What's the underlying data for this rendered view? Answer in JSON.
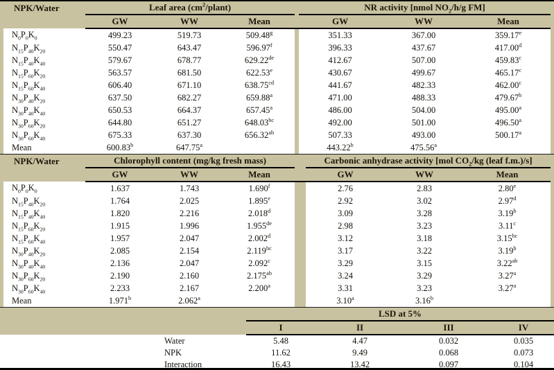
{
  "colors": {
    "header_bg": "#c9c2a1",
    "rule": "#000000",
    "text": "#14100a"
  },
  "row_header_label": "NPK/Water",
  "subheaders": [
    "GW",
    "WW",
    "Mean"
  ],
  "treatments": [
    "N_{0}P_{0}K_{0}",
    "N_{15}P_{40}K_{20}",
    "N_{15}P_{40}K_{40}",
    "N_{15}P_{60}K_{20}",
    "N_{15}P_{60}K_{40}",
    "N_{30}P_{40}K_{20}",
    "N_{30}P_{40}K_{40}",
    "N_{30}P_{60}K_{20}",
    "N_{30}P_{60}K_{40}",
    "Mean"
  ],
  "sections": [
    {
      "groups": [
        {
          "title": "Leaf area (cm^{2}/plant)",
          "rows": [
            [
              "499.23",
              "519.73",
              "509.48^{g}"
            ],
            [
              "550.47",
              "643.47",
              "596.97^{f}"
            ],
            [
              "579.67",
              "678.77",
              "629.22^{de}"
            ],
            [
              "563.57",
              "681.50",
              "622.53^{e}"
            ],
            [
              "606.40",
              "671.10",
              "638.75^{cd}"
            ],
            [
              "637.50",
              "682.27",
              "659.88^{a}"
            ],
            [
              "650.53",
              "664.37",
              "657.45^{a}"
            ],
            [
              "644.80",
              "651.27",
              "648.03^{bc}"
            ],
            [
              "675.33",
              "637.30",
              "656.32^{ab}"
            ],
            [
              "600.83^{b}",
              "647.75^{a}",
              ""
            ]
          ]
        },
        {
          "title": "NR activity [nmol NO_{2}/h/g FM]",
          "rows": [
            [
              "351.33",
              "367.00",
              "359.17^{e}"
            ],
            [
              "396.33",
              "437.67",
              "417.00^{d}"
            ],
            [
              "412.67",
              "507.00",
              "459.83^{c}"
            ],
            [
              "430.67",
              "499.67",
              "465.17^{c}"
            ],
            [
              "441.67",
              "482.33",
              "462.00^{c}"
            ],
            [
              "471.00",
              "488.33",
              "479.67^{b}"
            ],
            [
              "486.00",
              "504.00",
              "495.00^{a}"
            ],
            [
              "492.00",
              "501.00",
              "496.50^{a}"
            ],
            [
              "507.33",
              "493.00",
              "500.17^{a}"
            ],
            [
              "443.22^{b}",
              "475.56^{a}",
              ""
            ]
          ]
        }
      ]
    },
    {
      "groups": [
        {
          "title": "Chlorophyll content (mg/kg fresh mass)",
          "rows": [
            [
              "1.637",
              "1.743",
              "1.690^{f}"
            ],
            [
              "1.764",
              "2.025",
              "1.895^{e}"
            ],
            [
              "1.820",
              "2.216",
              "2.018^{d}"
            ],
            [
              "1.915",
              "1.996",
              "1.955^{de}"
            ],
            [
              "1.957",
              "2.047",
              "2.002^{d}"
            ],
            [
              "2.085",
              "2.154",
              "2.119^{bc}"
            ],
            [
              "2.136",
              "2.047",
              "2.092^{c}"
            ],
            [
              "2.190",
              "2.160",
              "2.175^{ab}"
            ],
            [
              "2.233",
              "2.167",
              "2.200^{a}"
            ],
            [
              "1.971^{b}",
              "2.062^{a}",
              ""
            ]
          ]
        },
        {
          "title": "Carbonic anhydrase activity [mol CO_{2}/kg (leaf f.m.)/s]",
          "rows": [
            [
              "2.76",
              "2.83",
              "2.80^{e}"
            ],
            [
              "2.92",
              "3.02",
              "2.97^{d}"
            ],
            [
              "3.09",
              "3.28",
              "3.19^{b}"
            ],
            [
              "2.98",
              "3.23",
              "3.11^{c}"
            ],
            [
              "3.12",
              "3.18",
              "3.15^{bc}"
            ],
            [
              "3.17",
              "3.22",
              "3.19^{b}"
            ],
            [
              "3.29",
              "3.15",
              "3.22^{ab}"
            ],
            [
              "3.24",
              "3.29",
              "3.27^{a}"
            ],
            [
              "3.31",
              "3.23",
              "3.27^{a}"
            ],
            [
              "3.10^{a}",
              "3.16^{b}",
              ""
            ]
          ]
        }
      ]
    }
  ],
  "lsd": {
    "title": "LSD at 5%",
    "columns": [
      "I",
      "II",
      "III",
      "IV"
    ],
    "rows": [
      {
        "label": "Water",
        "values": [
          "5.48",
          "4.47",
          "0.032",
          "0.035"
        ]
      },
      {
        "label": "NPK",
        "values": [
          "11.62",
          "9.49",
          "0.068",
          "0.073"
        ]
      },
      {
        "label": "Interaction",
        "values": [
          "16.43",
          "13.42",
          "0.097",
          "0.104"
        ]
      }
    ]
  }
}
